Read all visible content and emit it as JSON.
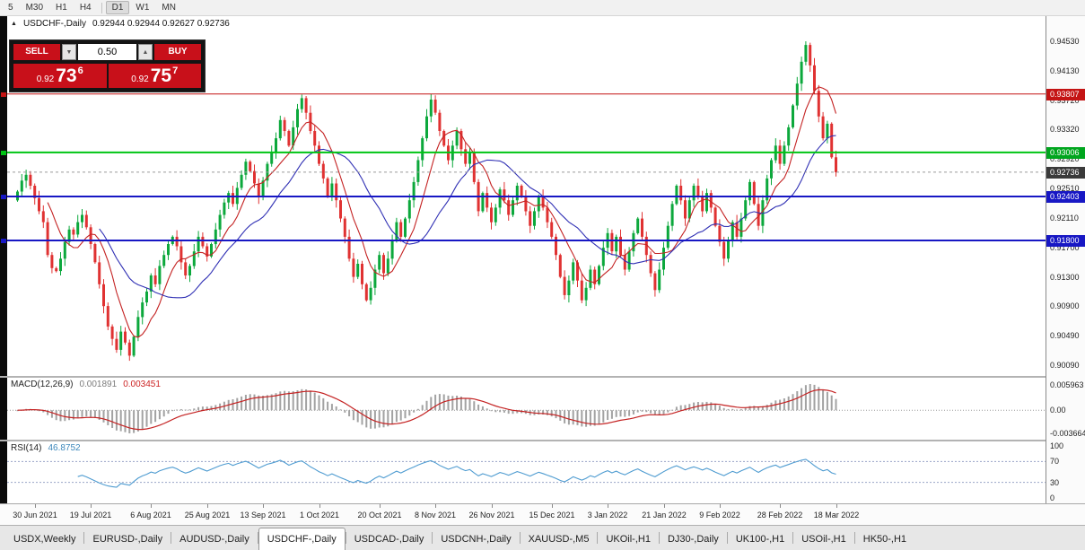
{
  "toolbar": {
    "items": [
      "5",
      "M30",
      "H1",
      "H4",
      "D1",
      "W1",
      "MN"
    ],
    "active": "D1",
    "separator_after": "H4"
  },
  "chart": {
    "collapse_icon": "▲",
    "title_symbol": "USDCHF-,Daily",
    "title_ohlc": "0.92944 0.92944 0.92627 0.92736"
  },
  "trade": {
    "sell_label": "SELL",
    "buy_label": "BUY",
    "volume": "0.50",
    "spin_down": "▼",
    "spin_up": "▲",
    "sell_price": {
      "base": "0.92",
      "big": "73",
      "sup": "6"
    },
    "buy_price": {
      "base": "0.92",
      "big": "75",
      "sup": "7"
    }
  },
  "price_axis": {
    "scale_labels": [
      "0.94530",
      "0.94130",
      "0.93720",
      "0.93320",
      "0.92920",
      "0.92510",
      "0.92110",
      "0.91700",
      "0.91300",
      "0.90900",
      "0.90490",
      "0.90090"
    ],
    "badges": [
      {
        "text": "0.93807",
        "color": "#c41414"
      },
      {
        "text": "0.93006",
        "color": "#00a51e"
      },
      {
        "text": "0.92736",
        "color": "#3a3a3a"
      },
      {
        "text": "0.92403",
        "color": "#1717c4"
      },
      {
        "text": "0.91800",
        "color": "#1717c4"
      }
    ]
  },
  "chart_data": {
    "type": "candlestick",
    "symbol": "USDCHF",
    "timeframe": "Daily",
    "price_range": {
      "top": 0.9453,
      "bottom": 0.9009
    },
    "first_open": 0.9235,
    "closes": [
      0.9247,
      0.9262,
      0.927,
      0.9255,
      0.9238,
      0.922,
      0.9205,
      0.916,
      0.9142,
      0.9138,
      0.9155,
      0.9178,
      0.9195,
      0.9188,
      0.9205,
      0.9215,
      0.9198,
      0.9175,
      0.915,
      0.912,
      0.909,
      0.9062,
      0.9045,
      0.903,
      0.9055,
      0.904,
      0.9022,
      0.9048,
      0.9075,
      0.9095,
      0.911,
      0.9132,
      0.912,
      0.9145,
      0.916,
      0.9175,
      0.9185,
      0.9172,
      0.915,
      0.9132,
      0.9145,
      0.9165,
      0.9185,
      0.9172,
      0.9158,
      0.9175,
      0.9195,
      0.9215,
      0.9232,
      0.9245,
      0.923,
      0.9252,
      0.927,
      0.9288,
      0.9275,
      0.9258,
      0.924,
      0.9262,
      0.9285,
      0.93,
      0.932,
      0.9345,
      0.933,
      0.931,
      0.9335,
      0.936,
      0.9375,
      0.9355,
      0.933,
      0.931,
      0.9285,
      0.9265,
      0.924,
      0.9258,
      0.9235,
      0.921,
      0.9185,
      0.9155,
      0.913,
      0.9148,
      0.912,
      0.9098,
      0.9115,
      0.914,
      0.916,
      0.9135,
      0.9155,
      0.918,
      0.9205,
      0.9185,
      0.921,
      0.9235,
      0.926,
      0.929,
      0.932,
      0.935,
      0.9373,
      0.9355,
      0.933,
      0.931,
      0.929,
      0.931,
      0.933,
      0.9305,
      0.9285,
      0.93,
      0.926,
      0.922,
      0.9245,
      0.9225,
      0.9205,
      0.9225,
      0.925,
      0.9235,
      0.9215,
      0.9235,
      0.9255,
      0.924,
      0.922,
      0.92,
      0.922,
      0.924,
      0.9225,
      0.9205,
      0.9185,
      0.916,
      0.913,
      0.9105,
      0.9125,
      0.915,
      0.9125,
      0.9098,
      0.9115,
      0.914,
      0.912,
      0.9145,
      0.917,
      0.919,
      0.9165,
      0.9185,
      0.916,
      0.914,
      0.9165,
      0.919,
      0.921,
      0.9185,
      0.916,
      0.9135,
      0.9112,
      0.914,
      0.917,
      0.92,
      0.923,
      0.9255,
      0.9235,
      0.921,
      0.9235,
      0.9255,
      0.924,
      0.922,
      0.9245,
      0.9225,
      0.92,
      0.9178,
      0.9155,
      0.918,
      0.9205,
      0.9185,
      0.921,
      0.9235,
      0.926,
      0.923,
      0.92,
      0.9235,
      0.9265,
      0.929,
      0.931,
      0.9285,
      0.931,
      0.9335,
      0.9365,
      0.9395,
      0.9425,
      0.9448,
      0.942,
      0.9385,
      0.935,
      0.932,
      0.934,
      0.9294,
      0.92736
    ],
    "x_labels": [
      "30 Jun 2021",
      "19 Jul 2021",
      "6 Aug 2021",
      "25 Aug 2021",
      "13 Sep 2021",
      "1 Oct 2021",
      "20 Oct 2021",
      "8 Nov 2021",
      "26 Nov 2021",
      "15 Dec 2021",
      "3 Jan 2022",
      "21 Jan 2022",
      "9 Feb 2022",
      "28 Feb 2022",
      "18 Mar 2022"
    ],
    "levels": [
      {
        "price": 0.93807,
        "color": "#c41414",
        "width": 1
      },
      {
        "price": 0.93006,
        "color": "#00c414",
        "width": 2
      },
      {
        "price": 0.92403,
        "color": "#1717c4",
        "width": 2
      },
      {
        "price": 0.918,
        "color": "#1717c4",
        "width": 2
      }
    ],
    "bid_line": {
      "price": 0.92736,
      "color": "#9a9a9a"
    },
    "colors": {
      "up": "#0ca83c",
      "down": "#e03232",
      "ma_fast": "#c42222",
      "ma_slow": "#3030b4"
    },
    "ma_fast_period": 8,
    "ma_slow_period": 20,
    "macd": {
      "label": "MACD(12,26,9)",
      "value_main": "0.001891",
      "value_signal": "0.003451",
      "axis_top": "0.005963",
      "axis_zero": "0.00",
      "axis_bottom": "-0.003664",
      "histogram_color": "#a2a2a2",
      "signal_color": "#c42222"
    },
    "rsi": {
      "label": "RSI(14)",
      "value": "46.8752",
      "period": 14,
      "axis_labels": [
        100,
        70,
        30,
        0
      ],
      "dashed_levels": [
        70,
        30
      ],
      "line_color": "#4f9cd1"
    }
  },
  "tab_bar": {
    "tabs": [
      "USDX,Weekly",
      "EURUSD-,Daily",
      "AUDUSD-,Daily",
      "USDCHF-,Daily",
      "USDCAD-,Daily",
      "USDCNH-,Daily",
      "XAUUSD-,M5",
      "UKOil-,H1",
      "DJ30-,Daily",
      "UK100-,H1",
      "USOil-,H1",
      "HK50-,H1"
    ],
    "active_index": 3
  }
}
